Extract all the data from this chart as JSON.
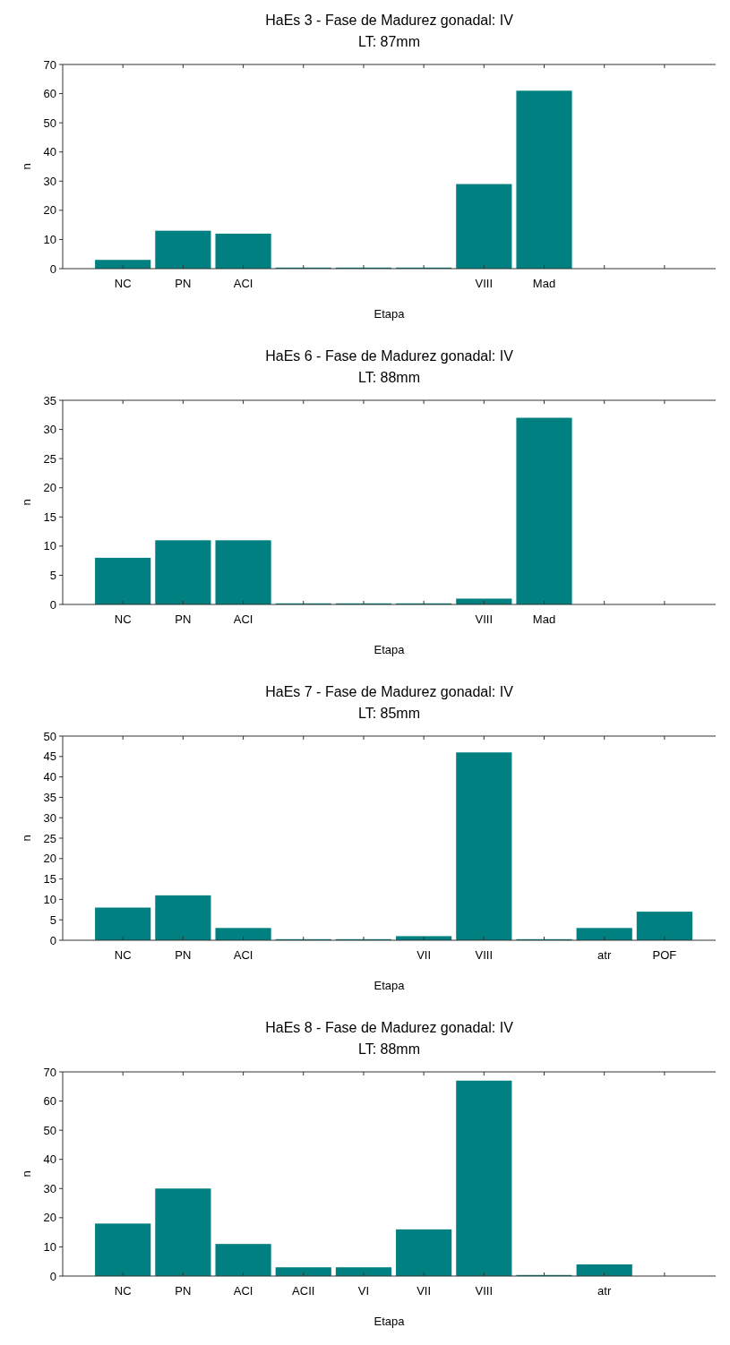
{
  "chart_data": [
    {
      "type": "bar",
      "title": "HaEs 3 - Fase de Madurez gonadal: IV",
      "subtitle": "LT: 87mm",
      "xlabel": "Etapa",
      "ylabel": "n",
      "categories": [
        "NC",
        "PN",
        "ACI",
        null,
        null,
        null,
        "VIII",
        "Mad",
        null,
        null
      ],
      "values": [
        3,
        13,
        12,
        0,
        0,
        0,
        29,
        61,
        null,
        null
      ],
      "color": "#008080",
      "ylim": [
        0,
        70
      ],
      "yticks": [
        0,
        10,
        20,
        30,
        40,
        50,
        60,
        70
      ]
    },
    {
      "type": "bar",
      "title": "HaEs 6 - Fase de Madurez gonadal: IV",
      "subtitle": "LT: 88mm",
      "xlabel": "Etapa",
      "ylabel": "n",
      "categories": [
        "NC",
        "PN",
        "ACI",
        null,
        null,
        null,
        "VIII",
        "Mad",
        null,
        null
      ],
      "values": [
        8,
        11,
        11,
        0,
        0,
        0,
        1,
        32,
        null,
        null
      ],
      "color": "#008080",
      "ylim": [
        0,
        35
      ],
      "yticks": [
        0,
        5,
        10,
        15,
        20,
        25,
        30,
        35
      ]
    },
    {
      "type": "bar",
      "title": "HaEs 7 - Fase de Madurez gonadal: IV",
      "subtitle": "LT: 85mm",
      "xlabel": "Etapa",
      "ylabel": "n",
      "categories": [
        "NC",
        "PN",
        "ACI",
        null,
        null,
        "VII",
        "VIII",
        null,
        "atr",
        "POF"
      ],
      "values": [
        8,
        11,
        3,
        0,
        0,
        1,
        46,
        0,
        3,
        7
      ],
      "color": "#008080",
      "ylim": [
        0,
        50
      ],
      "yticks": [
        0,
        5,
        10,
        15,
        20,
        25,
        30,
        35,
        40,
        45,
        50
      ]
    },
    {
      "type": "bar",
      "title": "HaEs 8 - Fase de Madurez gonadal: IV",
      "subtitle": "LT: 88mm",
      "xlabel": "Etapa",
      "ylabel": "n",
      "categories": [
        "NC",
        "PN",
        "ACI",
        "ACII",
        "VI",
        "VII",
        "VIII",
        null,
        "atr",
        null
      ],
      "values": [
        18,
        30,
        11,
        3,
        3,
        16,
        67,
        0,
        4,
        null
      ],
      "color": "#008080",
      "ylim": [
        0,
        70
      ],
      "yticks": [
        0,
        10,
        20,
        30,
        40,
        50,
        60,
        70
      ]
    }
  ]
}
